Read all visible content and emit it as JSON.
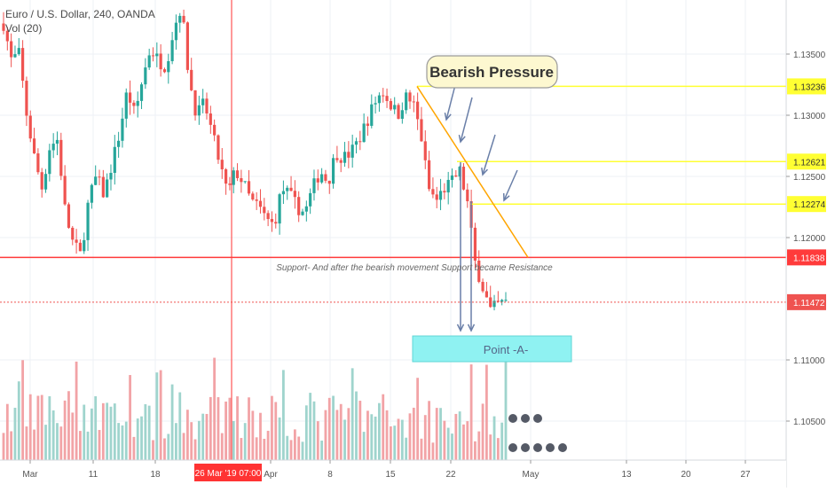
{
  "legend": {
    "symbol_line": "Euro / U.S. Dollar, 240, OANDA",
    "volume_line": "Vol (20)"
  },
  "annotations": {
    "bearish_label": "Bearish Pressure",
    "support_note": "Support- And after the bearish movement Support became Resistance",
    "point_a_label": "Point -A-",
    "crosshair_date": "26 Mar '19  07:00"
  },
  "colors": {
    "bull": "#26a69a",
    "bear": "#ef5350",
    "vol_bull": "#9fd4cd",
    "vol_bear": "#f2a3a6",
    "resistance_line": "#ff3b3b",
    "yellow_line": "#ffff33",
    "trendline": "#ffa500",
    "arrow": "#6a7fa8",
    "point_a_box": "#8ff2f2",
    "label_bg": "#fdf8d0",
    "crosshair": "#ff3333"
  },
  "chart_data": {
    "type": "candlestick",
    "symbol": "Euro / U.S. Dollar",
    "timeframe": "240",
    "source": "OANDA",
    "y_axis": {
      "ticks": [
        "1.13500",
        "1.13000",
        "1.12500",
        "1.12000",
        "1.11000",
        "1.10500"
      ],
      "tick_values": [
        1.135,
        1.13,
        1.125,
        1.12,
        1.11,
        1.105
      ],
      "range": [
        1.1012,
        1.139
      ]
    },
    "x_axis": {
      "tick_labels": [
        "Mar",
        "11",
        "18",
        "Apr",
        "8",
        "15",
        "22",
        "May",
        "13",
        "20",
        "27"
      ],
      "crosshair_label": "26 Mar '19  07:00"
    },
    "price_tags": [
      {
        "value": "1.13236",
        "level": 1.13236,
        "kind": "yellow"
      },
      {
        "value": "1.12621",
        "level": 1.12621,
        "kind": "yellow"
      },
      {
        "value": "1.12274",
        "level": 1.12274,
        "kind": "yellow"
      },
      {
        "value": "1.11838",
        "level": 1.11838,
        "kind": "red"
      },
      {
        "value": "1.11472",
        "level": 1.11472,
        "kind": "current"
      }
    ],
    "close_path": [
      1.1375,
      1.1345,
      1.135,
      1.13,
      1.1265,
      1.124,
      1.1275,
      1.128,
      1.122,
      1.1195,
      1.1185,
      1.123,
      1.125,
      1.1235,
      1.126,
      1.1285,
      1.132,
      1.13,
      1.133,
      1.1355,
      1.1345,
      1.134,
      1.137,
      1.139,
      1.133,
      1.13,
      1.131,
      1.1285,
      1.126,
      1.1235,
      1.1255,
      1.1245,
      1.123,
      1.1225,
      1.1215,
      1.121,
      1.124,
      1.1235,
      1.1225,
      1.122,
      1.124,
      1.1255,
      1.1245,
      1.127,
      1.1265,
      1.127,
      1.128,
      1.1295,
      1.131,
      1.132,
      1.131,
      1.13,
      1.1315,
      1.131,
      1.1285,
      1.124,
      1.123,
      1.124,
      1.1245,
      1.1255,
      1.123,
      1.118,
      1.116,
      1.114,
      1.1145,
      1.1147
    ]
  }
}
